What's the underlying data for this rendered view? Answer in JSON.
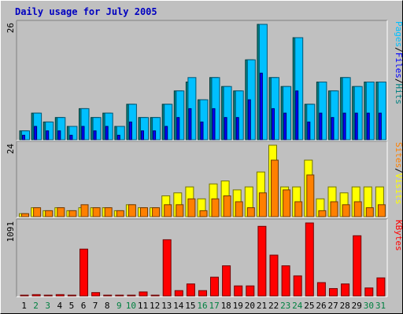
{
  "title": "Daily usage for July 2005",
  "chart_data": {
    "type": "bar",
    "categories": [
      "1",
      "2",
      "3",
      "4",
      "5",
      "6",
      "7",
      "8",
      "9",
      "10",
      "11",
      "12",
      "13",
      "14",
      "15",
      "16",
      "17",
      "18",
      "19",
      "20",
      "21",
      "22",
      "23",
      "24",
      "25",
      "26",
      "27",
      "28",
      "29",
      "30",
      "31"
    ],
    "weekend_days": [
      "2",
      "3",
      "9",
      "10",
      "16",
      "17",
      "23",
      "24",
      "30",
      "31"
    ],
    "panels": [
      {
        "name": "top",
        "ymax": 26,
        "ymax_label": "26",
        "side_labels": [
          {
            "text": "Pages",
            "color": "#00c0ff"
          },
          {
            "text": "/",
            "color": "#000000"
          },
          {
            "text": "Files",
            "color": "#0000ff"
          },
          {
            "text": "/",
            "color": "#000000"
          },
          {
            "text": "Hits",
            "color": "#008080"
          }
        ],
        "series": [
          {
            "name": "Hits",
            "color": "#008080",
            "values": [
              2,
              6,
              4,
              5,
              3,
              7,
              5,
              6,
              3,
              8,
              5,
              5,
              8,
              11,
              13,
              9,
              14,
              12,
              11,
              18,
              26,
              14,
              12,
              23,
              8,
              13,
              11,
              14,
              12,
              13,
              13
            ]
          },
          {
            "name": "Files",
            "color": "#0000ff",
            "values": [
              1,
              3,
              2,
              2,
              1,
              3,
              2,
              3,
              1,
              4,
              2,
              2,
              3,
              5,
              7,
              4,
              7,
              5,
              5,
              9,
              15,
              7,
              6,
              11,
              4,
              6,
              5,
              6,
              6,
              6,
              6
            ]
          },
          {
            "name": "Pages",
            "color": "#00c0ff",
            "values": [
              2,
              6,
              4,
              5,
              3,
              7,
              5,
              6,
              3,
              8,
              5,
              5,
              8,
              11,
              14,
              9,
              14,
              12,
              11,
              18,
              26,
              14,
              12,
              23,
              8,
              13,
              11,
              14,
              12,
              13,
              13
            ]
          }
        ]
      },
      {
        "name": "middle",
        "ymax": 24,
        "ymax_label": "24",
        "side_labels": [
          {
            "text": "Sites",
            "color": "#ff8000"
          },
          {
            "text": "/",
            "color": "#000000"
          },
          {
            "text": "Visits",
            "color": "#ffff00"
          }
        ],
        "series": [
          {
            "name": "Visits",
            "color": "#ffff00",
            "values": [
              1,
              3,
              2,
              3,
              2,
              3,
              3,
              3,
              2,
              4,
              3,
              3,
              7,
              8,
              10,
              6,
              11,
              12,
              9,
              10,
              15,
              24,
              10,
              10,
              19,
              6,
              10,
              8,
              10,
              10,
              10
            ]
          },
          {
            "name": "Sites",
            "color": "#ff8000",
            "values": [
              1,
              3,
              2,
              3,
              2,
              4,
              3,
              3,
              2,
              4,
              3,
              3,
              4,
              4,
              6,
              2,
              6,
              7,
              5,
              3,
              8,
              19,
              9,
              5,
              14,
              2,
              5,
              4,
              5,
              3,
              4
            ]
          }
        ]
      },
      {
        "name": "bottom",
        "ymax": 1091,
        "ymax_label": "1091",
        "side_labels": [
          {
            "text": "KBytes",
            "color": "#ff0000"
          }
        ],
        "series": [
          {
            "name": "KBytes",
            "color": "#ff0000",
            "values": [
              10,
              20,
              10,
              20,
              10,
              700,
              50,
              10,
              10,
              10,
              60,
              10,
              840,
              80,
              180,
              80,
              280,
              450,
              150,
              150,
              1040,
              610,
              450,
              300,
              1091,
              200,
              110,
              180,
              900,
              120,
              270
            ]
          }
        ]
      }
    ]
  }
}
